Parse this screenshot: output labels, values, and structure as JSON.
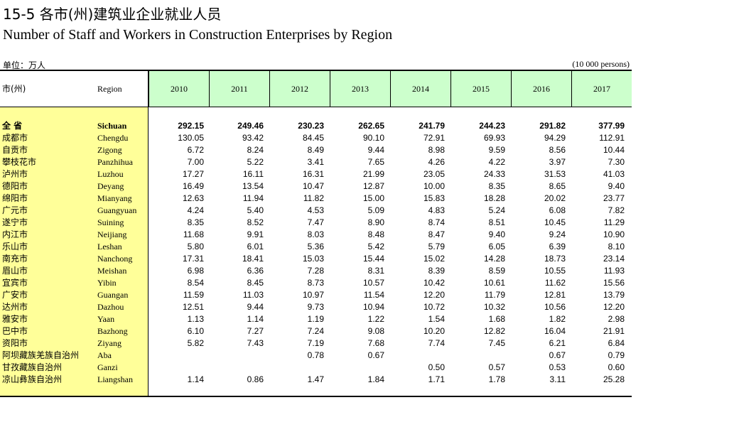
{
  "title_cn": "15-5 各市(州)建筑业企业就业人员",
  "title_en": "Number of Staff and Workers in Construction Enterprises by Region",
  "unit_cn": "单位：万人",
  "unit_en": "(10 000 persons)",
  "headers": {
    "region_cn": "市(州)",
    "region_en": "Region",
    "years": [
      "2010",
      "2011",
      "2012",
      "2013",
      "2014",
      "2015",
      "2016",
      "2017"
    ]
  },
  "rows": [
    {
      "cn": "全 省",
      "en": "Sichuan",
      "bold": true,
      "values": [
        "292.15",
        "249.46",
        "230.23",
        "262.65",
        "241.79",
        "244.23",
        "291.82",
        "377.99"
      ]
    },
    {
      "cn": "成都市",
      "en": "Chengdu",
      "values": [
        "130.05",
        "93.42",
        "84.45",
        "90.10",
        "72.91",
        "69.93",
        "94.29",
        "112.91"
      ]
    },
    {
      "cn": "自贡市",
      "en": "Zigong",
      "values": [
        "6.72",
        "8.24",
        "8.49",
        "9.44",
        "8.98",
        "9.59",
        "8.56",
        "10.44"
      ]
    },
    {
      "cn": "攀枝花市",
      "en": "Panzhihua",
      "values": [
        "7.00",
        "5.22",
        "3.41",
        "7.65",
        "4.26",
        "4.22",
        "3.97",
        "7.30"
      ]
    },
    {
      "cn": "泸州市",
      "en": "Luzhou",
      "values": [
        "17.27",
        "16.11",
        "16.31",
        "21.99",
        "23.05",
        "24.33",
        "31.53",
        "41.03"
      ]
    },
    {
      "cn": "德阳市",
      "en": "Deyang",
      "values": [
        "16.49",
        "13.54",
        "10.47",
        "12.87",
        "10.00",
        "8.35",
        "8.65",
        "9.40"
      ]
    },
    {
      "cn": "绵阳市",
      "en": "Mianyang",
      "values": [
        "12.63",
        "11.94",
        "11.82",
        "15.00",
        "15.83",
        "18.28",
        "20.02",
        "23.77"
      ]
    },
    {
      "cn": "广元市",
      "en": "Guangyuan",
      "values": [
        "4.24",
        "5.40",
        "4.53",
        "5.09",
        "4.83",
        "5.24",
        "6.08",
        "7.82"
      ]
    },
    {
      "cn": "遂宁市",
      "en": "Suining",
      "values": [
        "8.35",
        "8.52",
        "7.47",
        "8.90",
        "8.74",
        "8.51",
        "10.45",
        "11.29"
      ]
    },
    {
      "cn": "内江市",
      "en": "Neijiang",
      "values": [
        "11.68",
        "9.91",
        "8.03",
        "8.48",
        "8.47",
        "9.40",
        "9.24",
        "10.90"
      ]
    },
    {
      "cn": "乐山市",
      "en": "Leshan",
      "values": [
        "5.80",
        "6.01",
        "5.36",
        "5.42",
        "5.79",
        "6.05",
        "6.39",
        "8.10"
      ]
    },
    {
      "cn": "南充市",
      "en": "Nanchong",
      "values": [
        "17.31",
        "18.41",
        "15.03",
        "15.44",
        "15.02",
        "14.28",
        "18.73",
        "23.14"
      ]
    },
    {
      "cn": "眉山市",
      "en": "Meishan",
      "values": [
        "6.98",
        "6.36",
        "7.28",
        "8.31",
        "8.39",
        "8.59",
        "10.55",
        "11.93"
      ]
    },
    {
      "cn": "宜宾市",
      "en": "Yibin",
      "values": [
        "8.54",
        "8.45",
        "8.73",
        "10.57",
        "10.42",
        "10.61",
        "11.62",
        "15.56"
      ]
    },
    {
      "cn": "广安市",
      "en": "Guangan",
      "values": [
        "11.59",
        "11.03",
        "10.97",
        "11.54",
        "12.20",
        "11.79",
        "12.81",
        "13.79"
      ]
    },
    {
      "cn": "达州市",
      "en": "Dazhou",
      "values": [
        "12.51",
        "9.44",
        "9.73",
        "10.94",
        "10.72",
        "10.32",
        "10.56",
        "12.20"
      ]
    },
    {
      "cn": "雅安市",
      "en": "Yaan",
      "values": [
        "1.13",
        "1.14",
        "1.19",
        "1.22",
        "1.54",
        "1.68",
        "1.82",
        "2.98"
      ]
    },
    {
      "cn": "巴中市",
      "en": "Bazhong",
      "values": [
        "6.10",
        "7.27",
        "7.24",
        "9.08",
        "10.20",
        "12.82",
        "16.04",
        "21.91"
      ]
    },
    {
      "cn": "资阳市",
      "en": "Ziyang",
      "values": [
        "5.82",
        "7.43",
        "7.19",
        "7.68",
        "7.74",
        "7.45",
        "6.21",
        "6.84"
      ]
    },
    {
      "cn": "阿坝藏族羌族自治州",
      "en": "Aba",
      "values": [
        "",
        "",
        "0.78",
        "0.67",
        "",
        "",
        "0.67",
        "0.79"
      ]
    },
    {
      "cn": "甘孜藏族自治州",
      "en": "Ganzi",
      "values": [
        "",
        "",
        "",
        "",
        "0.50",
        "0.57",
        "0.53",
        "0.60"
      ]
    },
    {
      "cn": "凉山彝族自治州",
      "en": "Liangshan",
      "values": [
        "1.14",
        "0.86",
        "1.47",
        "1.84",
        "1.71",
        "1.78",
        "3.11",
        "25.28"
      ]
    }
  ]
}
